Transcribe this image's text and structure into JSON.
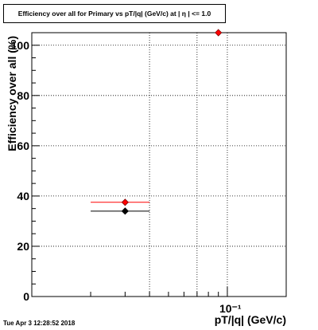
{
  "chart_data": {
    "type": "scatter",
    "title": "Efficiency over all for Primary vs pT/|q| (GeV/c) at | η | <= 1.0",
    "xlabel": "pT/|q| (GeV/c)",
    "ylabel": "Efficiency over all (%)",
    "x_scale": "log",
    "x_tick_label": "10⁻¹",
    "ylim": [
      0,
      105
    ],
    "yticks": [
      0,
      20,
      40,
      60,
      80,
      100
    ],
    "grid": true,
    "series": [
      {
        "color": "#ff0000",
        "points": [
          {
            "x": 0.03,
            "x_low": 0.02,
            "x_high": 0.04,
            "y": 37.5
          },
          {
            "x": 0.09,
            "y": 105
          }
        ]
      },
      {
        "color": "#000000",
        "points": [
          {
            "x": 0.03,
            "x_low": 0.02,
            "x_high": 0.04,
            "y": 34
          }
        ]
      }
    ]
  },
  "footer": {
    "timestamp": "Tue Apr  3 12:28:52 2018"
  }
}
